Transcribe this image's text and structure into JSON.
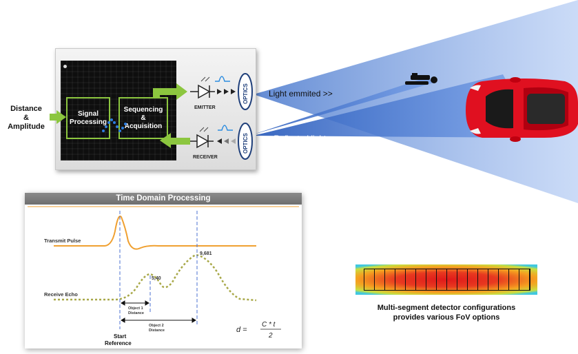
{
  "system": {
    "output_label_line1": "Distance",
    "output_label_line2": "&",
    "output_label_line3": "Amplitude",
    "signal_processing_line1": "Signal",
    "signal_processing_line2": "Processing",
    "sequencing_line1": "Sequencing",
    "sequencing_line2": "&",
    "sequencing_line3": "Acquisition",
    "emitter_label": "EMITTER",
    "receiver_label": "RECEIVER",
    "optics_top": "OPTICS",
    "optics_bottom": "OPTICS",
    "light_emitted": "Light emmited >>",
    "reflected_light": "<< Reflected light"
  },
  "time_domain": {
    "title": "Time Domain Processing",
    "transmit_pulse": "Transmit Pulse",
    "receive_echo": "Receive Echo",
    "peak1_value": "5,40",
    "peak2_value": "9,681",
    "object1_line1": "Object 1",
    "object1_line2": "Distance",
    "object2_line1": "Object 2",
    "object2_line2": "Distance",
    "start_line1": "Start",
    "start_line2": "Reference",
    "formula_lhs": "d =",
    "formula_num": "C * t",
    "formula_den": "2"
  },
  "detector": {
    "caption_line1": "Multi-segment detector configurations",
    "caption_line2": "provides various FoV options"
  },
  "colors": {
    "beam": "#4a7fd6",
    "arrow_green": "#8cc63f",
    "title_bar": "#7f7f7f",
    "transmit_curve": "#f0a030",
    "echo_curve": "#a8a848",
    "car_red": "#e01020"
  }
}
